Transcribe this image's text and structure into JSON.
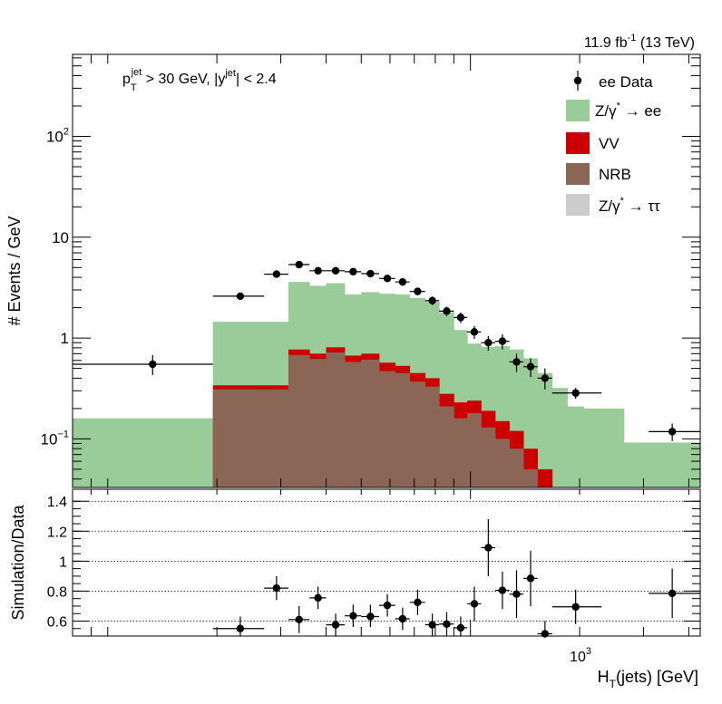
{
  "chart_data": [
    {
      "type": "bar",
      "stacked": true,
      "yscale": "log",
      "xscale": "log",
      "ylabel": "# Events / GeV",
      "lumi_label": "11.9 fb",
      "lumi_sup": "-1",
      "energy_label": " (13 TeV)",
      "cut_label": {
        "p": "p",
        "sub_t": "T",
        "sup_jet": "jet",
        "part1": " > 30 GeV,  |y",
        "sup_jet2": "jet",
        "part2": "| < 2.4"
      },
      "ylim": [
        0.033,
        650
      ],
      "y_ticks": [
        {
          "value": 100,
          "base": "10",
          "exp": "2"
        },
        {
          "value": 10,
          "base": "10",
          "exp": ""
        },
        {
          "value": 1,
          "base": "1",
          "exp": ""
        },
        {
          "value": 0.1,
          "base": "10",
          "exp": "−1"
        }
      ],
      "legend": [
        {
          "key": "data",
          "label": "ee Data",
          "color": "#000000"
        },
        {
          "key": "dy",
          "label_pre": "Z/γ",
          "label_sup": "*",
          "label_post": " → ee",
          "color": "#99cc99"
        },
        {
          "key": "vv",
          "label": "VV",
          "color": "#cc0000"
        },
        {
          "key": "nrb",
          "label": "NRB",
          "color": "#8b6656"
        },
        {
          "key": "tt",
          "label_pre": "Z/γ",
          "label_sup": "*",
          "label_post": " → ττ",
          "color": "#cccccc"
        }
      ],
      "bin_edges": [
        80,
        195,
        270,
        315,
        360,
        400,
        450,
        500,
        560,
        620,
        680,
        750,
        820,
        900,
        980,
        1070,
        1170,
        1280,
        1400,
        1530,
        1680,
        1850,
        2050,
        2300,
        2650,
        3100,
        4300
      ],
      "stack": {
        "nrb": [
          0.02,
          0.31,
          0.31,
          0.68,
          0.62,
          0.72,
          0.58,
          0.61,
          0.47,
          0.45,
          0.37,
          0.33,
          0.21,
          0.16,
          0.18,
          0.13,
          0.1,
          0.08,
          0.05,
          0.03,
          0.01,
          0.01,
          0.01,
          0.01,
          0.01,
          0.01
        ],
        "vv": [
          0.03,
          0.34,
          0.34,
          0.77,
          0.7,
          0.81,
          0.67,
          0.7,
          0.57,
          0.53,
          0.45,
          0.4,
          0.28,
          0.23,
          0.24,
          0.19,
          0.15,
          0.12,
          0.08,
          0.05,
          0.03,
          0.01,
          0.01,
          0.01,
          0.01,
          0.01
        ],
        "dy": [
          0.16,
          1.45,
          1.45,
          3.6,
          3.3,
          3.5,
          2.7,
          2.85,
          2.75,
          2.7,
          2.5,
          2.3,
          1.8,
          1.2,
          0.88,
          0.82,
          0.83,
          0.77,
          0.63,
          0.45,
          0.32,
          0.21,
          0.2,
          0.2,
          0.092,
          0.092
        ]
      },
      "data_points": [
        {
          "x": 133,
          "y": 0.55,
          "xerr": [
            80,
            195
          ],
          "yerr": [
            0.43,
            0.68
          ]
        },
        {
          "x": 232,
          "y": 2.6,
          "xerr": [
            195,
            270
          ],
          "yerr": [
            2.4,
            2.8
          ]
        },
        {
          "x": 292,
          "y": 4.3,
          "xerr": [
            270,
            315
          ],
          "yerr": [
            4.0,
            4.6
          ]
        },
        {
          "x": 337,
          "y": 5.35,
          "xerr": [
            315,
            360
          ],
          "yerr": [
            5.05,
            5.7
          ]
        },
        {
          "x": 380,
          "y": 4.65,
          "xerr": [
            360,
            400
          ],
          "yerr": [
            4.35,
            4.95
          ]
        },
        {
          "x": 425,
          "y": 4.65,
          "xerr": [
            400,
            450
          ],
          "yerr": [
            4.35,
            4.95
          ]
        },
        {
          "x": 475,
          "y": 4.55,
          "xerr": [
            450,
            500
          ],
          "yerr": [
            4.25,
            4.85
          ]
        },
        {
          "x": 530,
          "y": 4.35,
          "xerr": [
            500,
            560
          ],
          "yerr": [
            4.05,
            4.65
          ]
        },
        {
          "x": 590,
          "y": 3.9,
          "xerr": [
            560,
            620
          ],
          "yerr": [
            3.6,
            4.2
          ]
        },
        {
          "x": 650,
          "y": 3.6,
          "xerr": [
            620,
            680
          ],
          "yerr": [
            3.3,
            3.9
          ]
        },
        {
          "x": 715,
          "y": 2.9,
          "xerr": [
            680,
            750
          ],
          "yerr": [
            2.65,
            3.15
          ]
        },
        {
          "x": 785,
          "y": 2.35,
          "xerr": [
            750,
            820
          ],
          "yerr": [
            2.12,
            2.58
          ]
        },
        {
          "x": 860,
          "y": 1.85,
          "xerr": [
            820,
            900
          ],
          "yerr": [
            1.65,
            2.05
          ]
        },
        {
          "x": 940,
          "y": 1.6,
          "xerr": [
            900,
            980
          ],
          "yerr": [
            1.41,
            1.79
          ]
        },
        {
          "x": 1025,
          "y": 1.15,
          "xerr": [
            980,
            1070
          ],
          "yerr": [
            0.98,
            1.32
          ]
        },
        {
          "x": 1120,
          "y": 0.9,
          "xerr": [
            1070,
            1170
          ],
          "yerr": [
            0.75,
            1.05
          ]
        },
        {
          "x": 1225,
          "y": 0.93,
          "xerr": [
            1170,
            1280
          ],
          "yerr": [
            0.77,
            1.09
          ]
        },
        {
          "x": 1340,
          "y": 0.58,
          "xerr": [
            1280,
            1400
          ],
          "yerr": [
            0.46,
            0.7
          ]
        },
        {
          "x": 1465,
          "y": 0.52,
          "xerr": [
            1400,
            1530
          ],
          "yerr": [
            0.41,
            0.63
          ]
        },
        {
          "x": 1605,
          "y": 0.4,
          "xerr": [
            1530,
            1680
          ],
          "yerr": [
            0.31,
            0.5
          ]
        },
        {
          "x": 1950,
          "y": 0.285,
          "xerr": [
            1680,
            2300
          ],
          "yerr": [
            0.25,
            0.32
          ]
        },
        {
          "x": 3600,
          "y": 0.118,
          "xerr": [
            3100,
            4300
          ],
          "yerr": [
            0.095,
            0.142
          ]
        }
      ]
    },
    {
      "type": "scatter",
      "ylabel": "Simulation/Data",
      "xlabel": "H",
      "xlabel_sub": "T",
      "xlabel_post": "(jets) [GeV]",
      "ylim": [
        0.5,
        1.48
      ],
      "y_ticks": [
        "0.6",
        "0.8",
        "1",
        "1.2",
        "1.4"
      ],
      "x_tick": {
        "base": "10",
        "exp": "3"
      },
      "x_tick_value": 1000,
      "grid": true,
      "points": [
        {
          "x": 232,
          "y": 0.55,
          "xerr": [
            195,
            270
          ],
          "yerr": [
            0.48,
            0.63
          ]
        },
        {
          "x": 292,
          "y": 0.82,
          "xerr": [
            270,
            315
          ],
          "yerr": [
            0.74,
            0.9
          ]
        },
        {
          "x": 337,
          "y": 0.61,
          "xerr": [
            315,
            360
          ],
          "yerr": [
            0.52,
            0.7
          ]
        },
        {
          "x": 380,
          "y": 0.755,
          "xerr": [
            360,
            400
          ],
          "yerr": [
            0.68,
            0.83
          ]
        },
        {
          "x": 425,
          "y": 0.575,
          "xerr": [
            400,
            450
          ],
          "yerr": [
            0.5,
            0.65
          ]
        },
        {
          "x": 475,
          "y": 0.635,
          "xerr": [
            450,
            500
          ],
          "yerr": [
            0.56,
            0.71
          ]
        },
        {
          "x": 530,
          "y": 0.63,
          "xerr": [
            500,
            560
          ],
          "yerr": [
            0.56,
            0.71
          ]
        },
        {
          "x": 590,
          "y": 0.705,
          "xerr": [
            560,
            620
          ],
          "yerr": [
            0.63,
            0.78
          ]
        },
        {
          "x": 650,
          "y": 0.615,
          "xerr": [
            620,
            680
          ],
          "yerr": [
            0.54,
            0.69
          ]
        },
        {
          "x": 715,
          "y": 0.725,
          "xerr": [
            680,
            750
          ],
          "yerr": [
            0.64,
            0.81
          ]
        },
        {
          "x": 785,
          "y": 0.575,
          "xerr": [
            750,
            820
          ],
          "yerr": [
            0.5,
            0.65
          ]
        },
        {
          "x": 860,
          "y": 0.58,
          "xerr": [
            820,
            900
          ],
          "yerr": [
            0.5,
            0.66
          ]
        },
        {
          "x": 940,
          "y": 0.555,
          "xerr": [
            900,
            980
          ],
          "yerr": [
            0.48,
            0.63
          ]
        },
        {
          "x": 1025,
          "y": 0.715,
          "xerr": [
            980,
            1070
          ],
          "yerr": [
            0.6,
            0.83
          ]
        },
        {
          "x": 1120,
          "y": 1.09,
          "xerr": [
            1070,
            1170
          ],
          "yerr": [
            0.9,
            1.28
          ]
        },
        {
          "x": 1225,
          "y": 0.805,
          "xerr": [
            1170,
            1280
          ],
          "yerr": [
            0.68,
            0.93
          ]
        },
        {
          "x": 1340,
          "y": 0.78,
          "xerr": [
            1280,
            1400
          ],
          "yerr": [
            0.62,
            0.94
          ]
        },
        {
          "x": 1465,
          "y": 0.885,
          "xerr": [
            1400,
            1530
          ],
          "yerr": [
            0.7,
            1.07
          ]
        },
        {
          "x": 1605,
          "y": 0.515,
          "xerr": [
            1530,
            1680
          ],
          "yerr": [
            0.43,
            0.6
          ]
        },
        {
          "x": 1950,
          "y": 0.695,
          "xerr": [
            1680,
            2300
          ],
          "yerr": [
            0.58,
            0.81
          ]
        },
        {
          "x": 3600,
          "y": 0.785,
          "xerr": [
            3100,
            4300
          ],
          "yerr": [
            0.62,
            0.95
          ]
        }
      ]
    }
  ]
}
